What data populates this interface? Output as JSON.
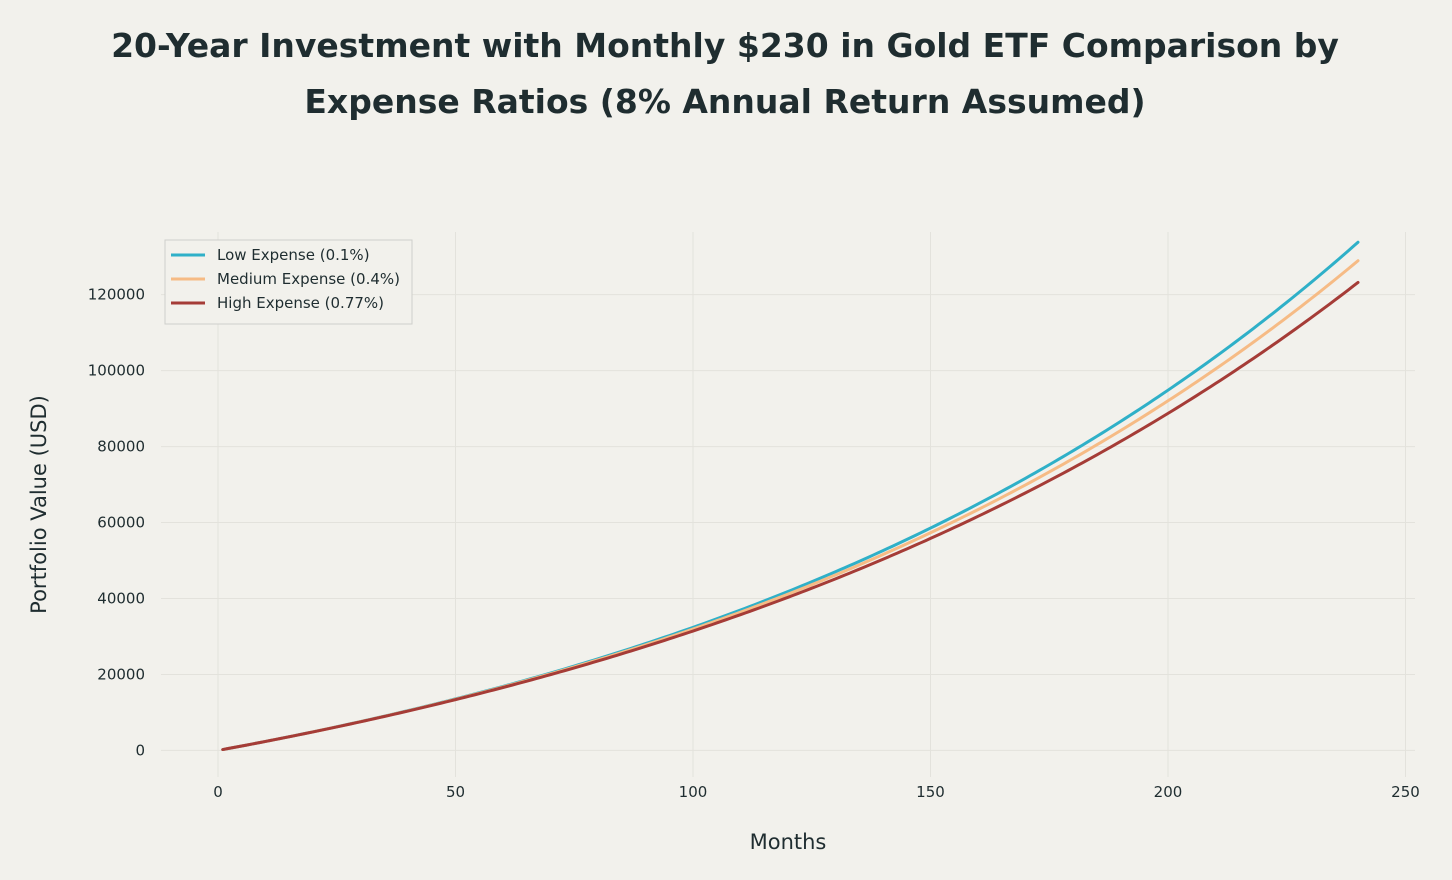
{
  "chart_data": {
    "type": "line",
    "title": "20-Year Investment with Monthly $230 in Gold ETF Comparison by Expense Ratios (8% Annual Return Assumed)",
    "xlabel": "Months",
    "ylabel": "Portfolio Value (USD)",
    "xlim": [
      -12,
      252
    ],
    "ylim": [
      -7000,
      136500
    ],
    "xticks": [
      0,
      50,
      100,
      150,
      200,
      250
    ],
    "yticks": [
      0,
      20000,
      40000,
      60000,
      80000,
      100000,
      120000
    ],
    "grid": true,
    "legend_position": "top-left",
    "monthly_contribution": 230,
    "annual_return": 0.08,
    "months": 240,
    "series": [
      {
        "name": "Low Expense (0.1%)",
        "expense_ratio": 0.001,
        "color": "#2fb0c8"
      },
      {
        "name": "Medium Expense (0.4%)",
        "expense_ratio": 0.004,
        "color": "#f6bb85"
      },
      {
        "name": "High Expense (0.77%)",
        "expense_ratio": 0.0077,
        "color": "#a53c37"
      }
    ]
  },
  "colors": {
    "background": "#f2f1ec",
    "grid": "#e3e2dc",
    "text": "#1f2d30"
  }
}
